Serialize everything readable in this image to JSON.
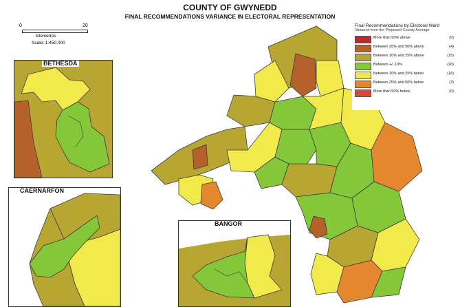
{
  "title": "COUNTY OF GWYNEDD",
  "subtitle": "FINAL RECOMMENDATIONS VARIANCE IN ELECTORAL REPRESENTATION",
  "scale": {
    "zero": "0",
    "max": "20",
    "unit": "kilometres",
    "ratio": "Scale: 1:450,000"
  },
  "insets": {
    "bethesda": "BETHESDA",
    "caernarfon": "CAERNARFON",
    "bangor": "BANGOR"
  },
  "legend": {
    "title": "Final Recommendations by Electoral Ward",
    "subtitle": "Variance from the Proposed County Average",
    "items": [
      {
        "label": "More than 50% above",
        "count": "(0)",
        "color": "#c0282a"
      },
      {
        "label": "Between 25% and 50% above",
        "count": "(4)",
        "color": "#b5622a"
      },
      {
        "label": "Between 10% and 25% above",
        "count": "(15)",
        "color": "#b8a632"
      },
      {
        "label": "Between +/- 10%",
        "count": "(26)",
        "color": "#84c83a"
      },
      {
        "label": "Between 10% and 25% below",
        "count": "(18)",
        "color": "#f2ea4a"
      },
      {
        "label": "Between 25% and 50% below",
        "count": "(3)",
        "color": "#e4872e"
      },
      {
        "label": "More than 50% below",
        "count": "(0)",
        "color": "#e0453a"
      }
    ]
  },
  "colors": {
    "above_50": "#c0282a",
    "above_25_50": "#b5622a",
    "above_10_25": "#b8a632",
    "within_10": "#84c83a",
    "below_10_25": "#f2ea4a",
    "below_25_50": "#e4872e",
    "below_50": "#e0453a",
    "sea": "#ffffff",
    "border": "#3a3a3a"
  }
}
